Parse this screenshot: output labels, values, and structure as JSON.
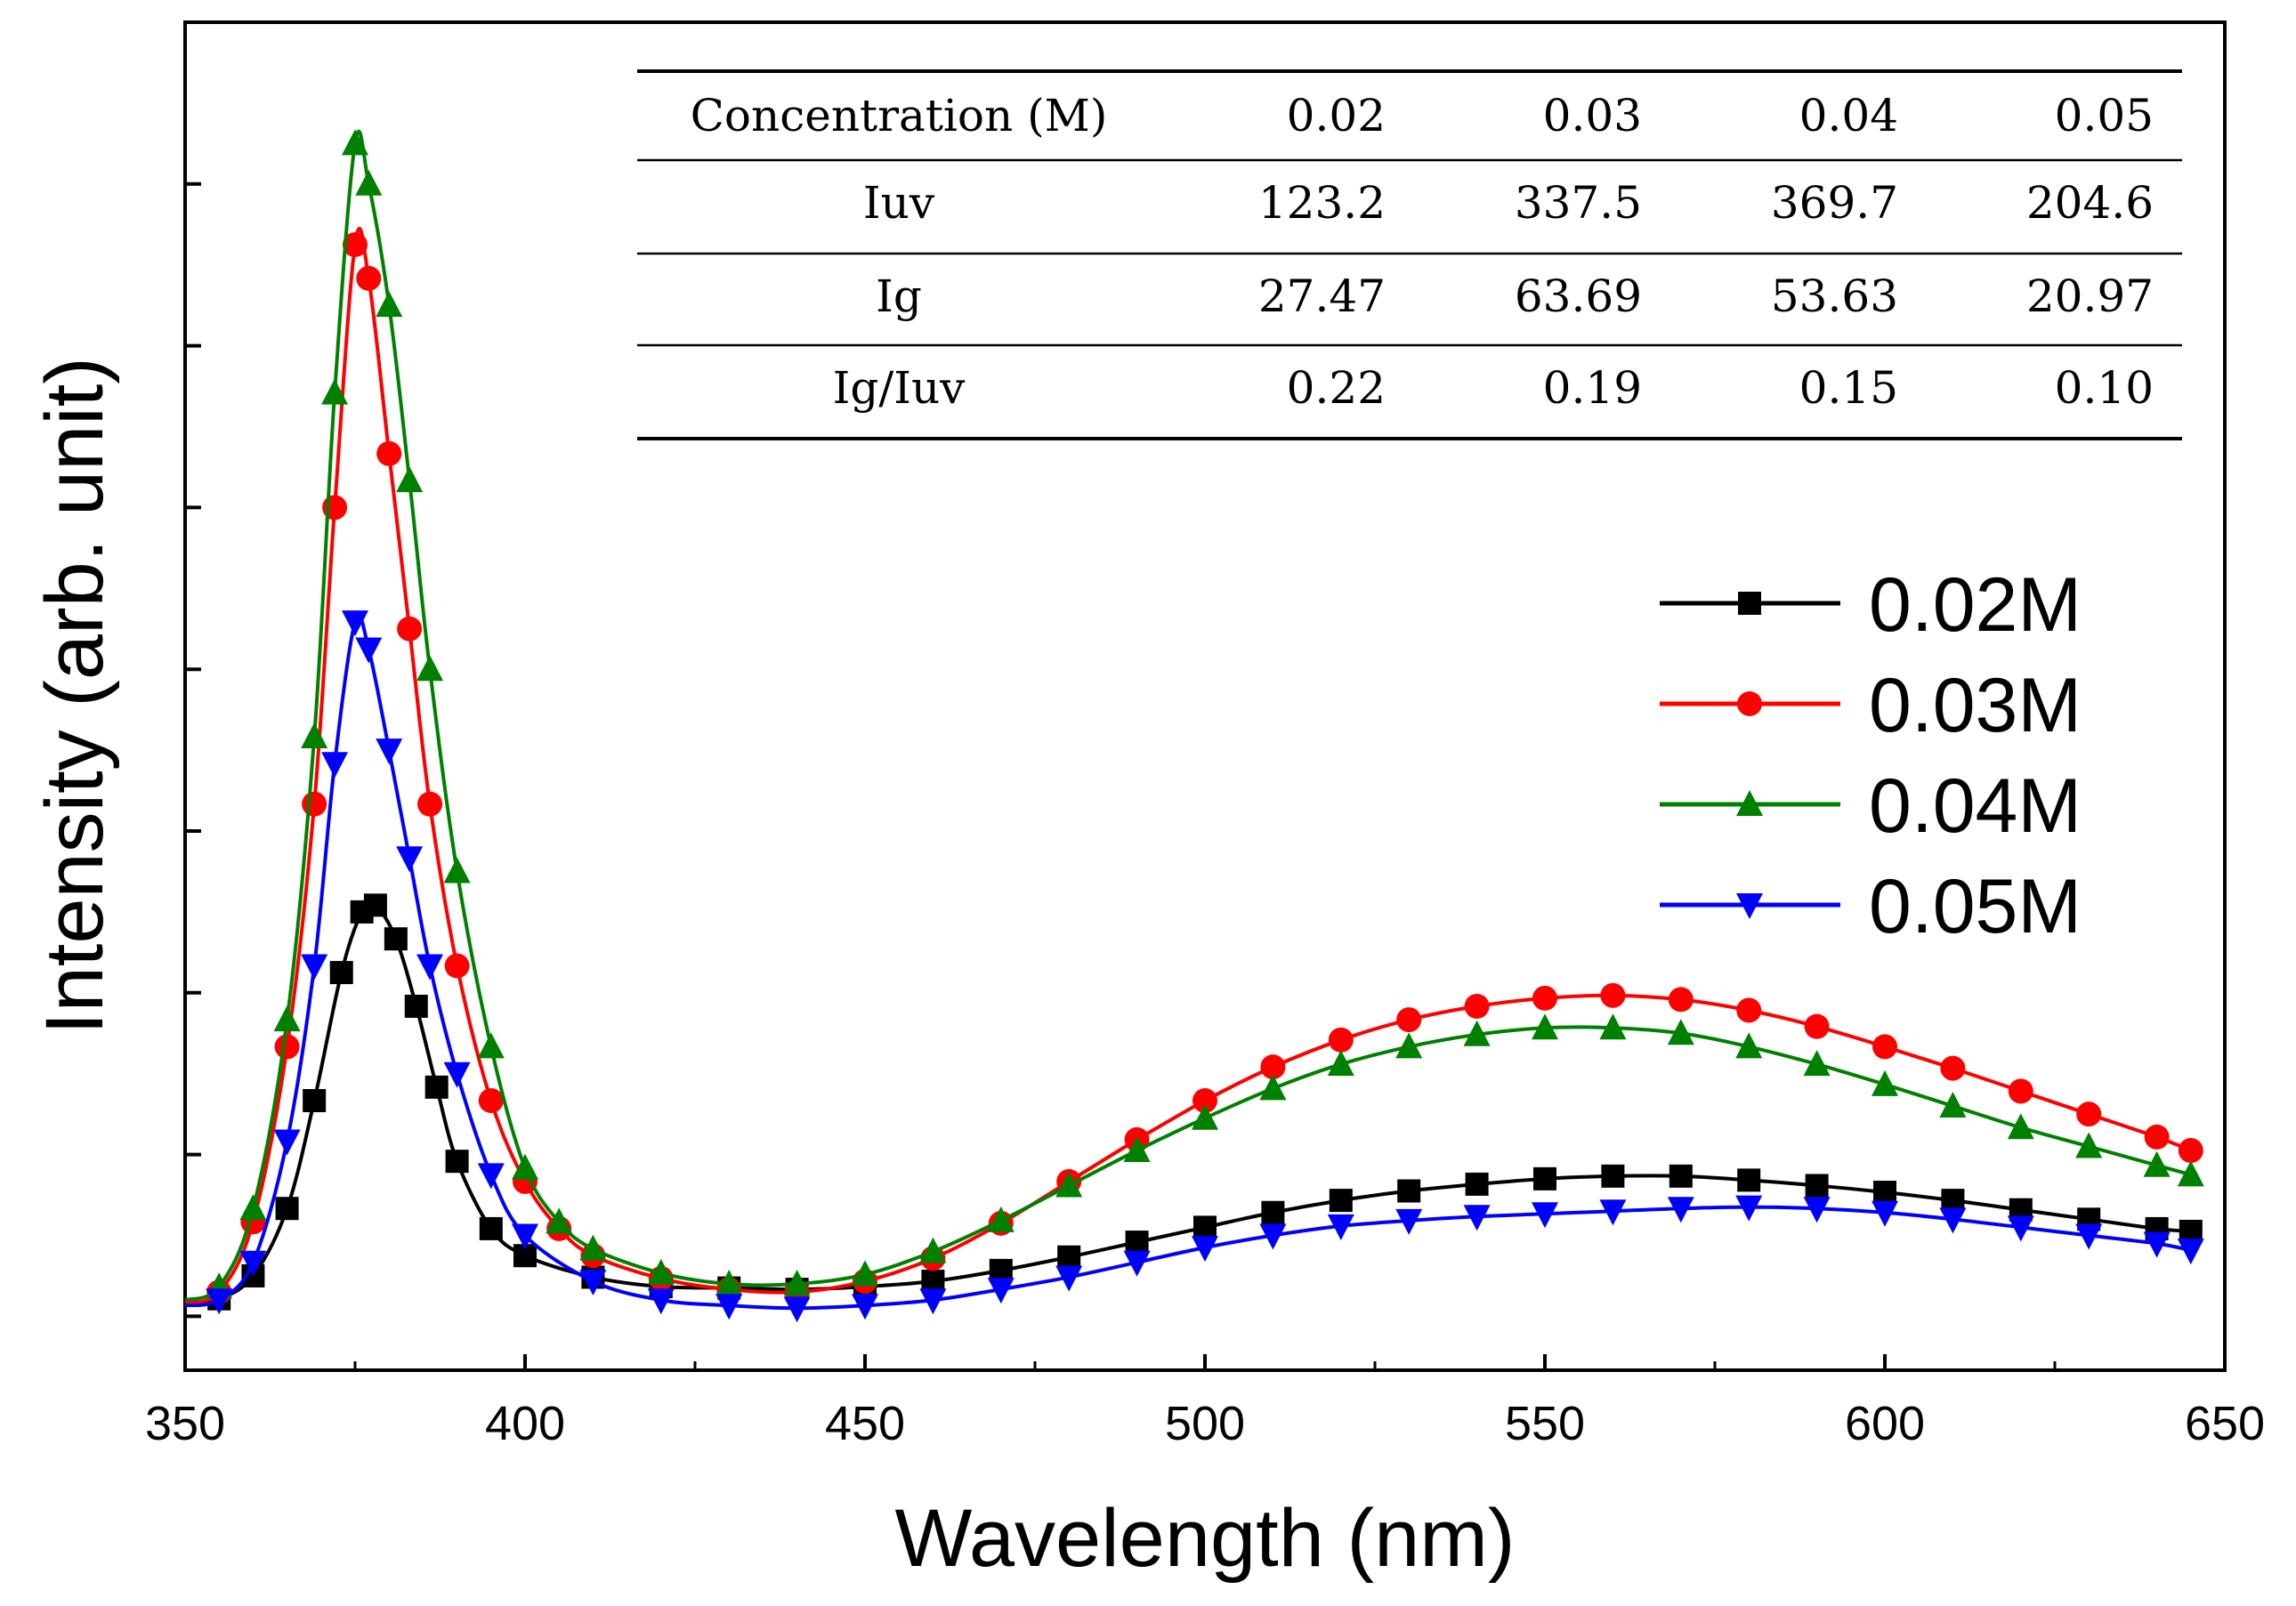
{
  "chart_data": {
    "type": "line",
    "title": "",
    "xlabel": "Wavelength (nm)",
    "ylabel": "Intensity (arb. unit)",
    "xlim": [
      350,
      650
    ],
    "ylim": [
      0,
      100
    ],
    "x_ticks": [
      350,
      400,
      450,
      500,
      550,
      600,
      650
    ],
    "x_tick_labels": [
      "350",
      "400",
      "450",
      "500",
      "550",
      "600",
      "650"
    ],
    "y_ticks": [
      4,
      16,
      28,
      40,
      52,
      64,
      76,
      88
    ],
    "y_tick_labels_shown": false,
    "legend_position": "center-right",
    "series": [
      {
        "name": "0.02M",
        "color": "#000000",
        "marker": "square",
        "x": [
          350,
          355,
          360,
          365,
          369,
          373,
          376,
          378,
          381,
          384,
          387,
          390,
          395,
          400,
          410,
          420,
          430,
          440,
          450,
          460,
          470,
          480,
          490,
          500,
          510,
          520,
          530,
          540,
          550,
          560,
          570,
          580,
          590,
          600,
          610,
          620,
          630,
          640,
          645
        ],
        "y": [
          5.0,
          5.3,
          7.0,
          12.0,
          20.0,
          29.5,
          34.0,
          34.5,
          32.0,
          27.0,
          21.0,
          15.5,
          10.5,
          8.5,
          6.9,
          6.2,
          6.1,
          6.0,
          6.2,
          6.6,
          7.4,
          8.4,
          9.5,
          10.6,
          11.7,
          12.6,
          13.3,
          13.8,
          14.2,
          14.4,
          14.4,
          14.1,
          13.7,
          13.2,
          12.6,
          11.9,
          11.2,
          10.5,
          10.3
        ]
      },
      {
        "name": "0.03M",
        "color": "#ff0000",
        "marker": "circle",
        "x": [
          350,
          355,
          360,
          365,
          369,
          372,
          375,
          377,
          380,
          383,
          386,
          390,
          395,
          400,
          405,
          410,
          420,
          430,
          440,
          450,
          460,
          470,
          480,
          490,
          500,
          510,
          520,
          530,
          540,
          550,
          560,
          570,
          580,
          590,
          600,
          610,
          620,
          630,
          640,
          645
        ],
        "y": [
          5.0,
          5.8,
          11.0,
          24.0,
          42.0,
          64.0,
          83.5,
          81.0,
          68.0,
          55.0,
          42.0,
          30.0,
          20.0,
          14.0,
          10.5,
          8.5,
          6.8,
          6.0,
          5.8,
          6.6,
          8.3,
          10.9,
          14.0,
          17.1,
          20.0,
          22.5,
          24.5,
          26.0,
          27.0,
          27.6,
          27.8,
          27.5,
          26.7,
          25.5,
          24.0,
          22.4,
          20.7,
          19.0,
          17.3,
          16.3
        ]
      },
      {
        "name": "0.04M",
        "color": "#008000",
        "marker": "triangle-up",
        "x": [
          350,
          355,
          360,
          365,
          369,
          372,
          375,
          377,
          380,
          383,
          386,
          390,
          395,
          400,
          405,
          410,
          420,
          430,
          440,
          450,
          460,
          470,
          480,
          490,
          500,
          510,
          520,
          530,
          540,
          550,
          560,
          570,
          580,
          590,
          600,
          610,
          620,
          630,
          640,
          645
        ],
        "y": [
          5.2,
          6.2,
          12.0,
          26.0,
          47.0,
          72.5,
          91.0,
          88.0,
          79.0,
          66.0,
          52.0,
          37.0,
          24.0,
          15.0,
          11.0,
          9.0,
          7.2,
          6.4,
          6.4,
          7.1,
          8.8,
          11.1,
          13.7,
          16.3,
          18.7,
          20.9,
          22.7,
          24.0,
          24.9,
          25.4,
          25.4,
          25.0,
          24.0,
          22.7,
          21.2,
          19.6,
          18.0,
          16.6,
          15.2,
          14.5
        ]
      },
      {
        "name": "0.05M",
        "color": "#0000ff",
        "marker": "triangle-down",
        "x": [
          350,
          355,
          360,
          365,
          369,
          372,
          375,
          377,
          380,
          383,
          386,
          390,
          395,
          400,
          410,
          420,
          430,
          440,
          450,
          460,
          470,
          480,
          490,
          500,
          510,
          520,
          530,
          540,
          550,
          560,
          570,
          580,
          590,
          600,
          610,
          620,
          630,
          640,
          645
        ],
        "y": [
          4.8,
          5.2,
          8.0,
          17.0,
          30.0,
          45.0,
          55.5,
          53.5,
          46.0,
          38.0,
          30.0,
          22.0,
          14.5,
          10.0,
          6.6,
          5.2,
          4.8,
          4.6,
          4.8,
          5.2,
          6.0,
          6.9,
          8.0,
          9.1,
          10.0,
          10.7,
          11.1,
          11.4,
          11.6,
          11.8,
          12.0,
          12.1,
          12.0,
          11.7,
          11.2,
          10.6,
          10.0,
          9.4,
          8.9
        ]
      }
    ],
    "inset_table": {
      "header": [
        "Concentration (M)",
        "0.02",
        "0.03",
        "0.04",
        "0.05"
      ],
      "rows": [
        [
          "Iuv",
          "123.2",
          "337.5",
          "369.7",
          "204.6"
        ],
        [
          "Ig",
          "27.47",
          "63.69",
          "53.63",
          "20.97"
        ],
        [
          "Ig/Iuv",
          "0.22",
          "0.19",
          "0.15",
          "0.10"
        ]
      ]
    }
  }
}
